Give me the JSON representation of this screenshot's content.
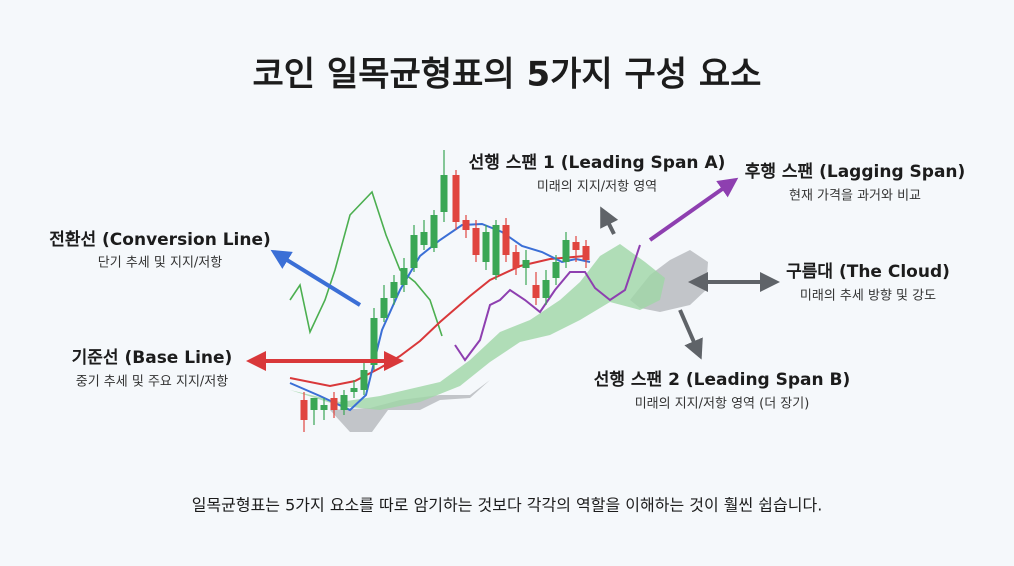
{
  "title": "코인 일목균형표의 5가지 구성 요소",
  "labels": [
    {
      "name": "전환선 (Conversion Line)",
      "desc": "단기 추세 및 지지/저항"
    },
    {
      "name": "기준선 (Base Line)",
      "desc": "중기 추세 및 주요 지지/저항"
    },
    {
      "name": "선행 스팬 1 (Leading Span A)",
      "desc": "미래의 지지/저항 영역"
    },
    {
      "name": "후행 스팬 (Lagging Span)",
      "desc": "현재 가격을 과거와 비교"
    },
    {
      "name": "구름대 (The Cloud)",
      "desc": "미래의 추세 방향 및 강도"
    },
    {
      "name": "선행 스팬 2 (Leading Span B)",
      "desc": "미래의 지지/저항 영역 (더 장기)"
    }
  ],
  "footer": "일목균형표는 5가지 요소를 따로 암기하는 것보다 각각의 역할을 이해하는 것이 훨씬 쉽습니다."
}
